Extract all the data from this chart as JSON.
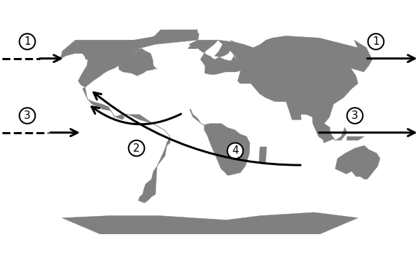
{
  "background_color": "#ffffff",
  "land_color": "#808080",
  "ocean_color": "#ffffff",
  "border_color": "#808080",
  "arrow_color": "#000000",
  "figsize": [
    6.0,
    3.72
  ],
  "dpi": 100
}
